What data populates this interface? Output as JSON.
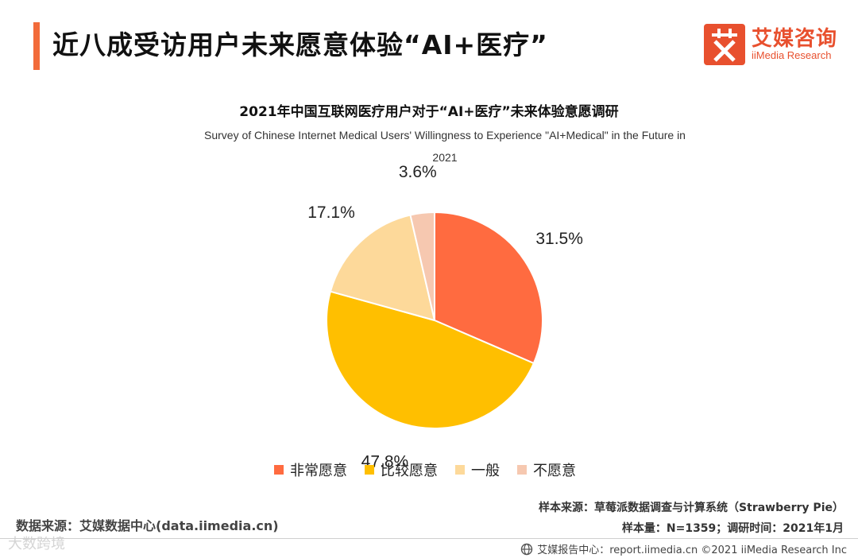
{
  "header": {
    "title": "近八成受访用户未来愿意体验“AI+医疗”",
    "logo_cn": "艾媒咨询",
    "logo_en": "iiMedia Research",
    "accent_color": "#f26b3a"
  },
  "chart_data": {
    "type": "pie",
    "title": "2021年中国互联网医疗用户对于“AI+医疗”未来体验意愿调研",
    "subtitle": "Survey of Chinese Internet Medical Users' Willingness to Experience \"AI+Medical\" in the Future in 2021",
    "categories": [
      "非常愿意",
      "比较愿意",
      "一般",
      "不愿意"
    ],
    "values": [
      31.5,
      47.8,
      17.1,
      3.6
    ],
    "labels": [
      "31.5%",
      "47.8%",
      "17.1%",
      "3.6%"
    ],
    "colors": [
      "#ff6b40",
      "#ffbf00",
      "#fdd99a",
      "#f6c8b0"
    ],
    "legend_position": "bottom"
  },
  "footer": {
    "source_left": "数据来源：艾媒数据中心(data.iimedia.cn)",
    "sample_source": "样本来源：草莓派数据调查与计算系统（Strawberry Pie）",
    "sample_info": "样本量：N=1359；调研时间：2021年1月",
    "report_center": "艾媒报告中心：report.iimedia.cn   ©2021  iiMedia Research  Inc",
    "watermark": "大数跨境"
  }
}
